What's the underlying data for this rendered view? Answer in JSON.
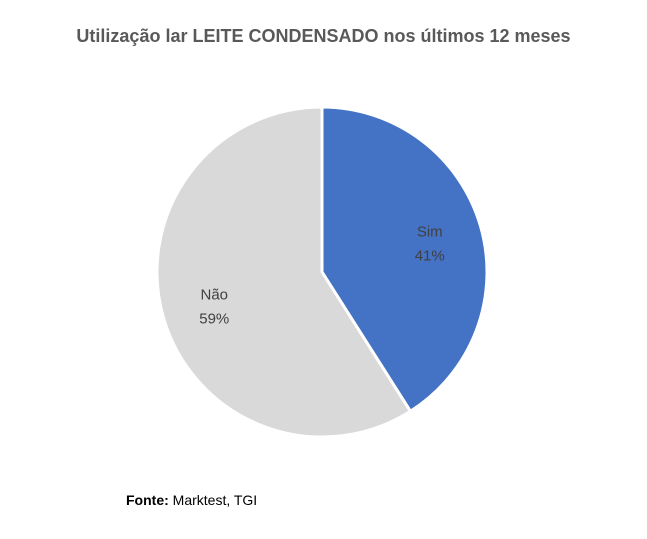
{
  "chart_data": {
    "type": "pie",
    "title": "Utilização lar LEITE CONDENSADO nos últimos 12 meses",
    "slices": [
      {
        "label": "Sim",
        "value": 41,
        "value_label": "41%",
        "color": "#4472C4"
      },
      {
        "label": "Não",
        "value": 59,
        "value_label": "59%",
        "color": "#D9D9D9"
      }
    ],
    "legend": "none"
  },
  "source": {
    "prefix": "Fonte:",
    "text": "Marktest, TGI"
  }
}
